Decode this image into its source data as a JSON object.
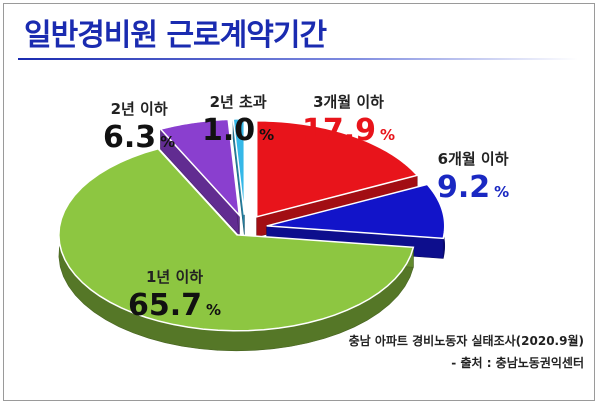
{
  "chart_data": {
    "type": "pie",
    "title": "일반경비원 근로계약기간",
    "unit": "%",
    "slices": [
      {
        "label": "3개월 이하",
        "value": 17.9,
        "color": "#e8141b",
        "text_color": "#e8141b"
      },
      {
        "label": "6개월 이하",
        "value": 9.2,
        "color": "#1214c9",
        "text_color": "#1a28c2"
      },
      {
        "label": "1년 이하",
        "value": 65.7,
        "color": "#8dc641",
        "text_color": "#111111"
      },
      {
        "label": "2년 이하",
        "value": 6.3,
        "color": "#8a3fcf",
        "text_color": "#111111"
      },
      {
        "label": "2년 초과",
        "value": 1.0,
        "color": "#35b8e8",
        "text_color": "#111111"
      }
    ]
  },
  "source": {
    "line1": "충남 아파트 경비노동자 실태조사(2020.9월)",
    "line2": "- 출처 : 충남노동권익센터"
  },
  "colors": {
    "title": "#1a2bb0"
  }
}
